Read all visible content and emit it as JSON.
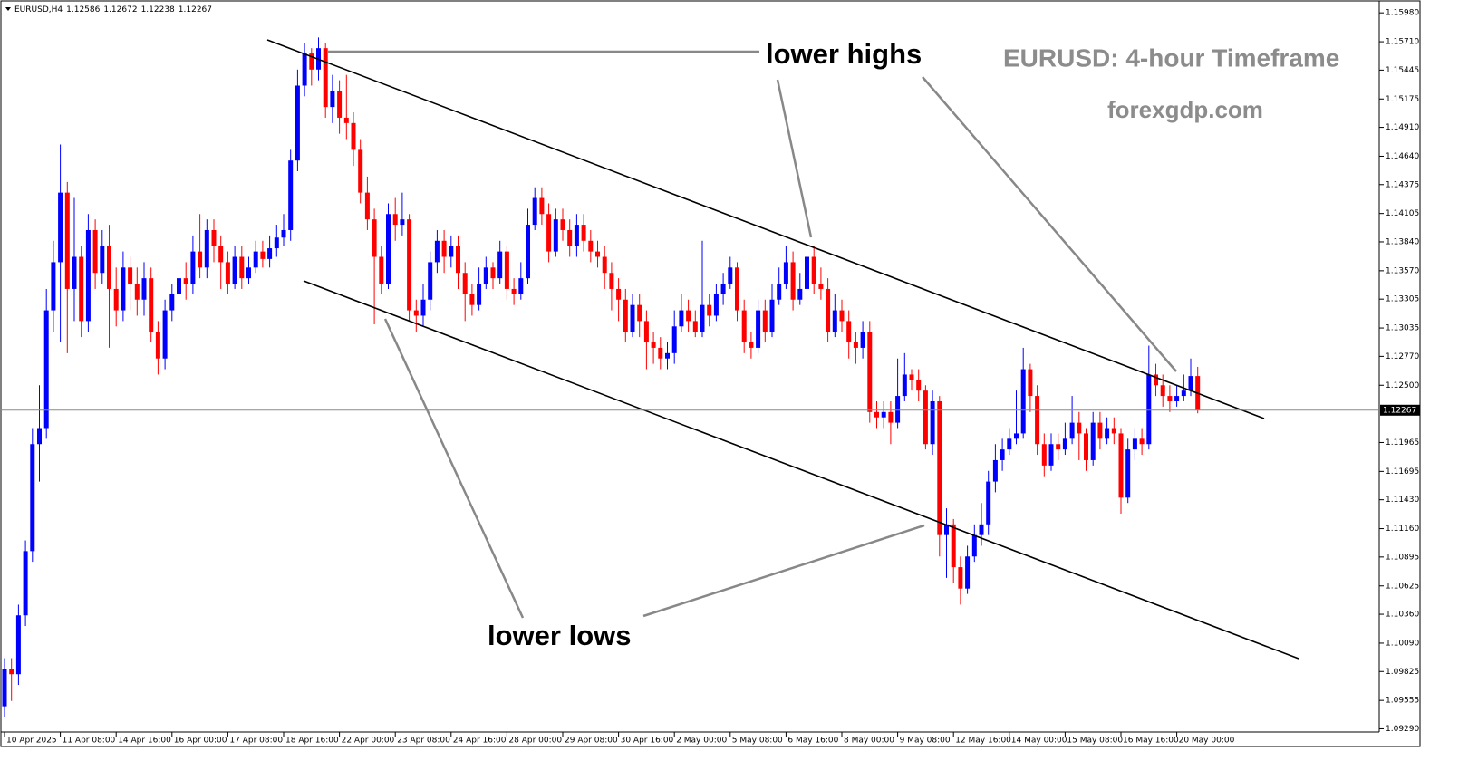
{
  "chart_data": {
    "type": "candlestick",
    "title": "EURUSD,H4",
    "annotations": [
      "lower highs",
      "lower lows",
      "EURUSD: 4-hour Timeframe",
      "forexgdp.com"
    ],
    "up_color": "#0000ff",
    "down_color": "#ff0000",
    "ylim": [
      1.0926,
      1.161
    ],
    "yticks": [
      {
        "value": 1.1598,
        "label": "1.15980"
      },
      {
        "value": 1.1571,
        "label": "1.15710"
      },
      1.15445,
      1.15175,
      {
        "value": 1.1491,
        "label": "1.14910"
      },
      {
        "value": 1.1464,
        "label": "1.14640"
      },
      1.14375,
      1.14105,
      {
        "value": 1.1384,
        "label": "1.13840"
      },
      {
        "value": 1.1357,
        "label": "1.13570"
      },
      1.13305,
      1.13035,
      {
        "value": 1.1277,
        "label": "1.12770"
      },
      {
        "value": 1.125,
        "label": "1.12500"
      },
      1.11965,
      1.11695,
      {
        "value": 1.1143,
        "label": "1.11430"
      },
      {
        "value": 1.1116,
        "label": "1.11160"
      },
      1.10895,
      1.10625,
      {
        "value": 1.1036,
        "label": "1.10360"
      },
      {
        "value": 1.1009,
        "label": "1.10090"
      },
      1.09825,
      1.09555,
      {
        "value": 1.0929,
        "label": "1.09290"
      }
    ],
    "categories": [
      "10 Apr 2025",
      null,
      null,
      null,
      null,
      null,
      null,
      null,
      "11 Apr 08:00",
      null,
      null,
      null,
      null,
      null,
      null,
      null,
      "14 Apr 16:00",
      null,
      null,
      null,
      null,
      null,
      null,
      null,
      "16 Apr 00:00",
      null,
      null,
      null,
      null,
      null,
      null,
      null,
      "17 Apr 08:00",
      null,
      null,
      null,
      null,
      null,
      null,
      null,
      "18 Apr 16:00",
      null,
      null,
      null,
      null,
      null,
      null,
      null,
      "22 Apr 00:00",
      null,
      null,
      null,
      null,
      null,
      null,
      null,
      "23 Apr 08:00",
      null,
      null,
      null,
      null,
      null,
      null,
      null,
      "24 Apr 16:00",
      null,
      null,
      null,
      null,
      null,
      null,
      null,
      "28 Apr 00:00",
      null,
      null,
      null,
      null,
      null,
      null,
      null,
      "29 Apr 08:00",
      null,
      null,
      null,
      null,
      null,
      null,
      null,
      "30 Apr 16:00",
      null,
      null,
      null,
      null,
      null,
      null,
      null,
      "2 May 00:00",
      null,
      null,
      null,
      null,
      null,
      null,
      null,
      "5 May 08:00",
      null,
      null,
      null,
      null,
      null,
      null,
      null,
      "6 May 16:00",
      null,
      null,
      null,
      null,
      null,
      null,
      null,
      "8 May 00:00",
      null,
      null,
      null,
      null,
      null,
      null,
      null,
      "9 May 08:00",
      null,
      null,
      null,
      null,
      null,
      null,
      null,
      "12 May 16:00",
      null,
      null,
      null,
      null,
      null,
      null,
      null,
      "14 May 00:00",
      null,
      null,
      null,
      null,
      null,
      null,
      null,
      "15 May 08:00",
      null,
      null,
      null,
      null,
      null,
      null,
      null,
      "16 May 16:00",
      null,
      null,
      null,
      null,
      null,
      null,
      null,
      "20 May 00:00",
      null,
      null,
      null
    ],
    "open": [
      1.095,
      1.0985,
      1.098,
      1.1035,
      1.1095,
      1.1195,
      1.121,
      1.132,
      1.1365,
      1.143,
      1.134,
      1.137,
      1.131,
      1.1395,
      1.1355,
      1.138,
      1.134,
      1.132,
      1.136,
      1.1345,
      1.133,
      1.135,
      1.13,
      1.1275,
      1.132,
      1.1335,
      1.135,
      1.1345,
      1.1375,
      1.136,
      1.1395,
      1.138,
      1.1365,
      1.1345,
      1.137,
      1.135,
      1.136,
      1.1375,
      1.1368,
      1.1378,
      1.1388,
      1.1395,
      1.146,
      1.153,
      1.156,
      1.1545,
      1.1565,
      1.151,
      1.1525,
      1.15,
      1.1495,
      1.147,
      1.143,
      1.1405,
      1.137,
      1.1345,
      1.141,
      1.14,
      1.1405,
      1.132,
      1.1315,
      1.133,
      1.1365,
      1.1385,
      1.137,
      1.138,
      1.1355,
      1.1335,
      1.1325,
      1.1345,
      1.136,
      1.135,
      1.1375,
      1.134,
      1.1335,
      1.135,
      1.14,
      1.1425,
      1.141,
      1.1375,
      1.1405,
      1.1395,
      1.138,
      1.14,
      1.1385,
      1.1375,
      1.137,
      1.1355,
      1.134,
      1.133,
      1.13,
      1.1325,
      1.131,
      1.129,
      1.1285,
      1.1275,
      1.128,
      1.1305,
      1.132,
      1.131,
      1.13,
      1.1325,
      1.1315,
      1.1335,
      1.1345,
      1.136,
      1.132,
      1.129,
      1.1285,
      1.132,
      1.13,
      1.133,
      1.1345,
      1.1365,
      1.133,
      1.134,
      1.137,
      1.1345,
      1.134,
      1.13,
      1.132,
      1.131,
      1.129,
      1.1285,
      1.13,
      1.1225,
      1.122,
      1.1225,
      1.1215,
      1.124,
      1.126,
      1.1255,
      1.1245,
      1.1195,
      1.1235,
      1.111,
      1.112,
      1.108,
      1.106,
      1.109,
      1.111,
      1.112,
      1.116,
      1.118,
      1.119,
      1.12,
      1.1205,
      1.1265,
      1.124,
      1.1195,
      1.1175,
      1.1195,
      1.119,
      1.12,
      1.1215,
      1.1205,
      1.118,
      1.1215,
      1.12,
      1.121,
      1.1205,
      1.1145,
      1.119,
      1.12,
      1.1195,
      1.126,
      1.125,
      1.124,
      1.1235,
      1.124,
      1.1245,
      1.12586
    ],
    "high": [
      1.0995,
      1.0995,
      1.1045,
      1.1105,
      1.121,
      1.125,
      1.134,
      1.1385,
      1.1475,
      1.144,
      1.1425,
      1.138,
      1.141,
      1.1405,
      1.1395,
      1.14,
      1.136,
      1.1375,
      1.137,
      1.136,
      1.1365,
      1.136,
      1.131,
      1.133,
      1.1345,
      1.137,
      1.1365,
      1.139,
      1.141,
      1.1405,
      1.1405,
      1.139,
      1.1375,
      1.138,
      1.138,
      1.137,
      1.1385,
      1.1385,
      1.139,
      1.14,
      1.141,
      1.147,
      1.1545,
      1.157,
      1.1565,
      1.1575,
      1.157,
      1.154,
      1.1535,
      1.154,
      1.1505,
      1.148,
      1.1445,
      1.1415,
      1.138,
      1.142,
      1.1425,
      1.143,
      1.141,
      1.133,
      1.1345,
      1.1375,
      1.1395,
      1.1395,
      1.139,
      1.139,
      1.1365,
      1.1345,
      1.136,
      1.137,
      1.1365,
      1.1385,
      1.138,
      1.135,
      1.1365,
      1.1415,
      1.1435,
      1.1435,
      1.142,
      1.1415,
      1.1415,
      1.1405,
      1.141,
      1.141,
      1.1395,
      1.1385,
      1.138,
      1.1365,
      1.135,
      1.134,
      1.1335,
      1.1335,
      1.132,
      1.13,
      1.1295,
      1.129,
      1.132,
      1.1335,
      1.133,
      1.132,
      1.1385,
      1.1335,
      1.1345,
      1.1355,
      1.137,
      1.1365,
      1.133,
      1.13,
      1.133,
      1.133,
      1.1345,
      1.136,
      1.138,
      1.1375,
      1.1355,
      1.1385,
      1.138,
      1.136,
      1.135,
      1.1335,
      1.133,
      1.132,
      1.13,
      1.131,
      1.131,
      1.1235,
      1.1235,
      1.1235,
      1.1275,
      1.128,
      1.1265,
      1.1265,
      1.125,
      1.1245,
      1.124,
      1.1135,
      1.1125,
      1.109,
      1.11,
      1.112,
      1.114,
      1.117,
      1.1195,
      1.12,
      1.121,
      1.1245,
      1.1285,
      1.127,
      1.125,
      1.1205,
      1.1205,
      1.1205,
      1.1215,
      1.124,
      1.1225,
      1.121,
      1.1225,
      1.1225,
      1.122,
      1.122,
      1.121,
      1.12,
      1.121,
      1.121,
      1.1287,
      1.127,
      1.126,
      1.125,
      1.125,
      1.126,
      1.1275,
      1.12672
    ],
    "low": [
      1.094,
      1.0955,
      1.097,
      1.1025,
      1.1085,
      1.116,
      1.12,
      1.13,
      1.129,
      1.128,
      1.131,
      1.1295,
      1.13,
      1.134,
      1.1345,
      1.1285,
      1.1305,
      1.131,
      1.132,
      1.1315,
      1.1315,
      1.129,
      1.126,
      1.1265,
      1.131,
      1.1325,
      1.133,
      1.1335,
      1.135,
      1.135,
      1.1365,
      1.134,
      1.1335,
      1.134,
      1.134,
      1.1345,
      1.1355,
      1.136,
      1.136,
      1.137,
      1.138,
      1.1385,
      1.145,
      1.152,
      1.153,
      1.1535,
      1.15,
      1.1495,
      1.1485,
      1.148,
      1.1455,
      1.142,
      1.1395,
      1.1307,
      1.1335,
      1.134,
      1.1385,
      1.139,
      1.131,
      1.13,
      1.1305,
      1.132,
      1.1355,
      1.1355,
      1.136,
      1.134,
      1.131,
      1.1315,
      1.132,
      1.134,
      1.134,
      1.1345,
      1.133,
      1.1325,
      1.133,
      1.1345,
      1.1395,
      1.14,
      1.1365,
      1.137,
      1.1385,
      1.137,
      1.137,
      1.1375,
      1.1365,
      1.136,
      1.134,
      1.132,
      1.131,
      1.129,
      1.1295,
      1.1295,
      1.1265,
      1.127,
      1.1265,
      1.1265,
      1.127,
      1.13,
      1.13,
      1.1295,
      1.1295,
      1.1305,
      1.131,
      1.1325,
      1.134,
      1.131,
      1.128,
      1.1275,
      1.128,
      1.129,
      1.1295,
      1.1325,
      1.134,
      1.132,
      1.1325,
      1.1335,
      1.1335,
      1.133,
      1.129,
      1.1295,
      1.13,
      1.1275,
      1.127,
      1.1275,
      1.1215,
      1.121,
      1.121,
      1.1195,
      1.121,
      1.1235,
      1.1245,
      1.1235,
      1.119,
      1.1185,
      1.109,
      1.107,
      1.1065,
      1.1045,
      1.1055,
      1.1085,
      1.11,
      1.111,
      1.115,
      1.117,
      1.1185,
      1.1195,
      1.12,
      1.1225,
      1.1185,
      1.1165,
      1.117,
      1.118,
      1.1185,
      1.1195,
      1.118,
      1.117,
      1.1175,
      1.119,
      1.1195,
      1.1195,
      1.113,
      1.114,
      1.118,
      1.1185,
      1.119,
      1.124,
      1.123,
      1.1225,
      1.123,
      1.1235,
      1.124,
      1.12238
    ],
    "close": [
      1.0985,
      1.098,
      1.1035,
      1.1095,
      1.1195,
      1.121,
      1.132,
      1.1365,
      1.143,
      1.134,
      1.137,
      1.131,
      1.1395,
      1.1355,
      1.138,
      1.134,
      1.132,
      1.136,
      1.1345,
      1.133,
      1.135,
      1.13,
      1.1275,
      1.132,
      1.1335,
      1.135,
      1.1345,
      1.1375,
      1.136,
      1.1395,
      1.138,
      1.1365,
      1.1345,
      1.137,
      1.135,
      1.136,
      1.1375,
      1.1368,
      1.1378,
      1.1388,
      1.1395,
      1.146,
      1.153,
      1.156,
      1.1545,
      1.1565,
      1.151,
      1.1525,
      1.15,
      1.1495,
      1.147,
      1.143,
      1.1405,
      1.137,
      1.1345,
      1.141,
      1.14,
      1.1405,
      1.132,
      1.1315,
      1.133,
      1.1365,
      1.1385,
      1.137,
      1.138,
      1.1355,
      1.1335,
      1.1325,
      1.1345,
      1.136,
      1.135,
      1.1375,
      1.134,
      1.1335,
      1.135,
      1.14,
      1.1425,
      1.141,
      1.1375,
      1.1405,
      1.1395,
      1.138,
      1.14,
      1.1385,
      1.1375,
      1.137,
      1.1355,
      1.134,
      1.133,
      1.13,
      1.1325,
      1.131,
      1.129,
      1.1285,
      1.1275,
      1.128,
      1.1305,
      1.132,
      1.131,
      1.13,
      1.1325,
      1.1315,
      1.1335,
      1.1345,
      1.136,
      1.132,
      1.129,
      1.1285,
      1.132,
      1.13,
      1.133,
      1.1345,
      1.1365,
      1.133,
      1.134,
      1.137,
      1.1345,
      1.134,
      1.13,
      1.132,
      1.131,
      1.129,
      1.1285,
      1.13,
      1.1225,
      1.122,
      1.1225,
      1.1215,
      1.124,
      1.126,
      1.1255,
      1.1245,
      1.1195,
      1.1235,
      1.111,
      1.112,
      1.108,
      1.106,
      1.109,
      1.111,
      1.112,
      1.116,
      1.118,
      1.119,
      1.12,
      1.1205,
      1.1265,
      1.124,
      1.1195,
      1.1175,
      1.1195,
      1.119,
      1.12,
      1.1215,
      1.1205,
      1.118,
      1.1215,
      1.12,
      1.121,
      1.1205,
      1.1145,
      1.119,
      1.12,
      1.1195,
      1.126,
      1.125,
      1.124,
      1.1235,
      1.124,
      1.1245,
      1.12586,
      1.12267
    ]
  }
}
